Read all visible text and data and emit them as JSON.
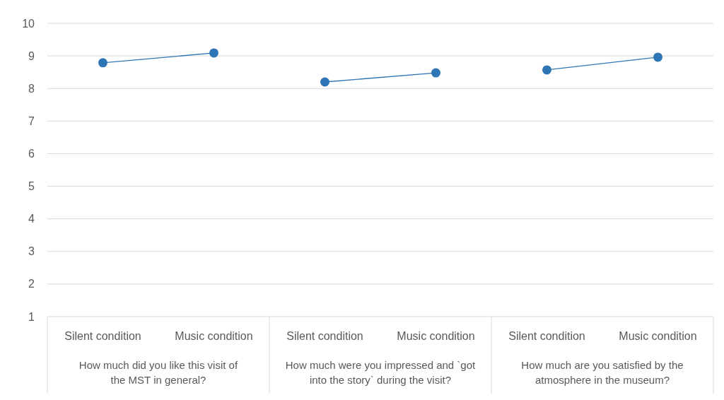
{
  "chart_data": {
    "type": "line",
    "categories": [
      "Silent condition",
      "Music condition",
      "Silent condition",
      "Music condition",
      "Silent condition",
      "Music condition"
    ],
    "series": [
      {
        "color": "#2e75b6",
        "values": [
          8.79,
          9.09,
          null,
          null,
          null,
          null
        ]
      },
      {
        "color": "#2e75b6",
        "values": [
          null,
          null,
          8.2,
          8.48,
          null,
          null
        ]
      },
      {
        "color": "#2e75b6",
        "values": [
          null,
          null,
          null,
          null,
          8.57,
          8.96
        ]
      }
    ],
    "annotations": [
      "How much did you like this visit of the MST in general?",
      "How much were you impressed and `got into the story` during the visit?",
      "How much are you satisfied by the atmosphere in the museum?"
    ],
    "ylim": [
      1,
      10
    ],
    "yticks": [
      1,
      2,
      3,
      4,
      5,
      6,
      7,
      8,
      9,
      10
    ],
    "grid": "y",
    "marker": "circle"
  }
}
